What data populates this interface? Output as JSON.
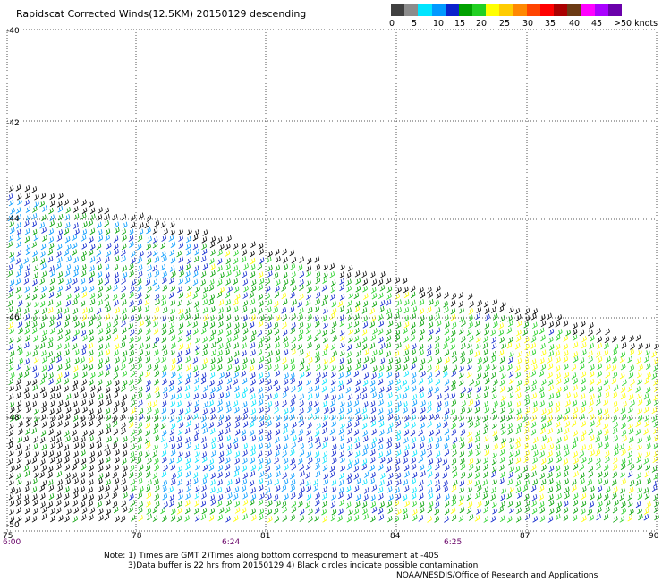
{
  "title": "Rapidscat Corrected Winds(12.5KM) 20150129 descending",
  "colorbar": {
    "colors": [
      "#404040",
      "#8c8c8c",
      "#00e5ff",
      "#0099ff",
      "#0a22cc",
      "#00a000",
      "#22d022",
      "#ffff00",
      "#ffcc00",
      "#ff8800",
      "#ff4400",
      "#ff0000",
      "#aa0000",
      "#6b3a14",
      "#ff00ff",
      "#aa00ff",
      "#6a00aa"
    ],
    "labels": [
      "0",
      "5",
      "10",
      "15",
      "20",
      "25",
      "30",
      "35",
      "40",
      "45",
      ">50 knots"
    ]
  },
  "map": {
    "lat_labels": [
      "-40",
      "-42",
      "-44",
      "-46",
      "-48",
      "-50"
    ],
    "lon_labels": [
      "75",
      "78",
      "81",
      "84",
      "87",
      "90"
    ],
    "time_labels": [
      "6:00",
      "6:24",
      "6:25"
    ]
  },
  "notes": {
    "line1": "Note: 1) Times are GMT 2)Times along bottom correspond to measurement at -40S",
    "line2": "3)Data buffer is 22 hrs from 20150129 4) Black circles indicate possible contamination",
    "line3": "NOAA/NESDIS/Office of Research and Applications"
  }
}
